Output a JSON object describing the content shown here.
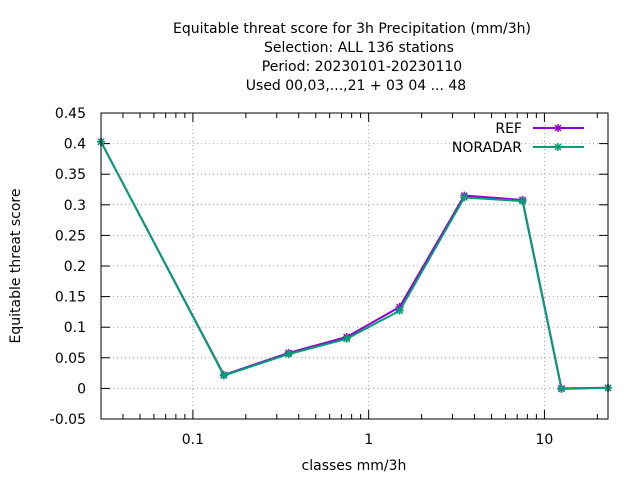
{
  "chart_data": {
    "type": "line",
    "title_lines": [
      "Equitable threat score  for 3h Precipitation (mm/3h)",
      "Selection: ALL    136 stations",
      "Period: 20230101-20230110",
      "Used  00,03,...,21  + 03 04 ... 48"
    ],
    "xlabel": "classes mm/3h",
    "ylabel": "Equitable threat score",
    "xscale": "log",
    "xlim": [
      0.03,
      23
    ],
    "ylim": [
      -0.05,
      0.45
    ],
    "x_major_ticks": [
      0.1,
      1,
      10
    ],
    "x_tick_labels": [
      "0.1",
      "1",
      "10"
    ],
    "x_minor_ticks": [
      0.04,
      0.05,
      0.06,
      0.07,
      0.08,
      0.09,
      0.2,
      0.3,
      0.4,
      0.5,
      0.6,
      0.7,
      0.8,
      0.9,
      2,
      3,
      4,
      5,
      6,
      7,
      8,
      9,
      20
    ],
    "y_ticks": [
      -0.05,
      0,
      0.05,
      0.1,
      0.15,
      0.2,
      0.25,
      0.3,
      0.35,
      0.4,
      0.45
    ],
    "y_tick_labels": [
      "-0.05",
      "0",
      "0.05",
      "0.1",
      "0.15",
      "0.2",
      "0.25",
      "0.3",
      "0.35",
      "0.4",
      "0.45"
    ],
    "grid": true,
    "legend_position": "top-right",
    "x": [
      0.03,
      0.15,
      0.35,
      0.75,
      1.5,
      3.5,
      7.5,
      12.5,
      23
    ],
    "series": [
      {
        "name": "REF",
        "color": "#9400d3",
        "values": [
          0.403,
          0.022,
          0.058,
          0.084,
          0.133,
          0.315,
          0.308,
          0.0,
          0.001
        ]
      },
      {
        "name": "NORADAR",
        "color": "#009e73",
        "values": [
          0.403,
          0.021,
          0.056,
          0.081,
          0.127,
          0.312,
          0.306,
          -0.001,
          0.001
        ]
      }
    ]
  }
}
